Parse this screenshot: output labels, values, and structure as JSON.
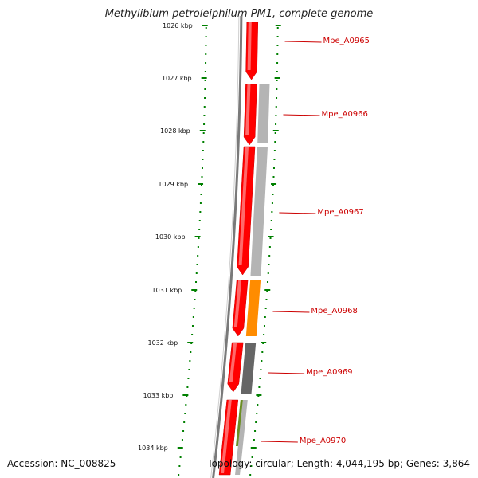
{
  "title": "Methylibium petroleiphilum PM1, complete genome",
  "footer": {
    "accession_label": "Accession:",
    "accession": "NC_008825",
    "topology_label": "Topology:",
    "topology": "circular",
    "length_label": "Length:",
    "length": "4,044,195 bp",
    "genes_label": "Genes:",
    "genes": "3,864"
  },
  "colors": {
    "forward_gene": "#ff0000",
    "gene_grey": "#b4b4b4",
    "gene_orange": "#ff8c00",
    "gene_dark": "#666666",
    "gene_green": "#6b8e23",
    "label": "#cc0000",
    "ticks": "#008000"
  },
  "axis": {
    "unit": "kbp",
    "ticks": [
      "1026 kbp",
      "1027 kbp",
      "1028 kbp",
      "1029 kbp",
      "1030 kbp",
      "1031 kbp",
      "1032 kbp",
      "1033 kbp",
      "1034 kbp"
    ]
  },
  "gene_labels": [
    "Mpe_A0965",
    "Mpe_A0966",
    "Mpe_A0967",
    "Mpe_A0968",
    "Mpe_A0969",
    "Mpe_A0970"
  ]
}
